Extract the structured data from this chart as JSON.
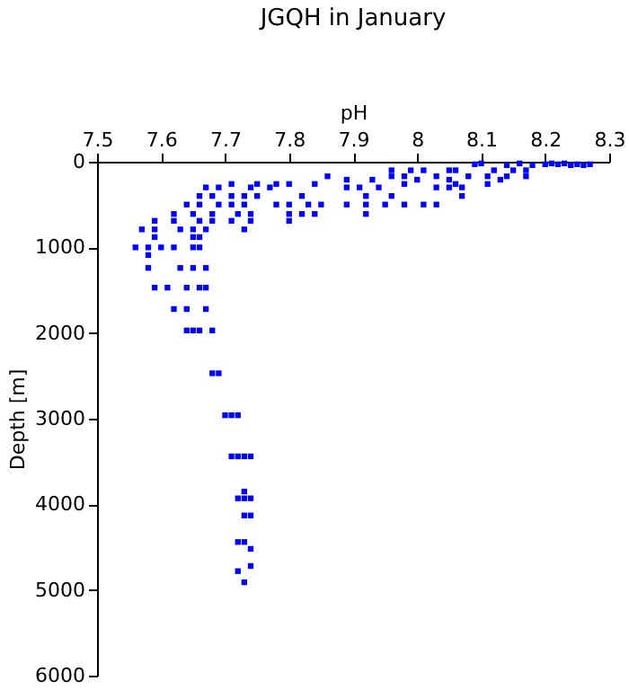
{
  "chart_data": {
    "type": "scatter",
    "title": "JGQH in January",
    "xlabel": "pH",
    "ylabel": "Depth [m]",
    "xlim": [
      7.5,
      8.3
    ],
    "xticks": [
      7.5,
      7.6,
      7.7,
      7.8,
      7.9,
      8,
      8.1,
      8.2,
      8.3
    ],
    "ylim": [
      6000,
      0
    ],
    "yticks": [
      0,
      1000,
      2000,
      3000,
      4000,
      5000,
      6000
    ],
    "marker": "square",
    "grid": false,
    "series": [
      {
        "color": "#0000ff",
        "x": [
          8.09,
          8.1,
          8.14,
          8.16,
          8.18,
          8.2,
          8.21,
          8.22,
          8.23,
          8.24,
          8.25,
          8.26,
          8.27,
          7.96,
          7.99,
          8.01,
          8.05,
          8.06,
          8.12,
          8.15,
          8.17,
          7.86,
          7.96,
          7.98,
          8.03,
          8.08,
          8.11,
          8.14,
          8.17,
          7.89,
          7.93,
          8.0,
          8.05,
          8.13,
          7.71,
          7.75,
          7.78,
          7.8,
          7.84,
          7.98,
          8.06,
          8.11,
          7.67,
          7.69,
          7.74,
          7.77,
          7.89,
          7.91,
          7.94,
          8.03,
          8.05,
          8.07,
          7.66,
          7.68,
          7.71,
          7.73,
          7.75,
          7.82,
          7.92,
          7.96,
          8.07,
          7.64,
          7.66,
          7.69,
          7.71,
          7.73,
          7.78,
          7.8,
          7.83,
          7.85,
          7.89,
          7.92,
          7.95,
          7.98,
          8.01,
          8.03,
          7.62,
          7.65,
          7.68,
          7.72,
          7.74,
          7.8,
          7.82,
          7.84,
          7.92,
          7.59,
          7.62,
          7.66,
          7.68,
          7.71,
          7.74,
          7.8,
          7.57,
          7.59,
          7.63,
          7.65,
          7.67,
          7.73,
          7.59,
          7.65,
          7.66,
          7.56,
          7.58,
          7.6,
          7.62,
          7.65,
          7.66,
          7.58,
          7.58,
          7.63,
          7.65,
          7.67,
          7.59,
          7.61,
          7.64,
          7.66,
          7.67,
          7.62,
          7.64,
          7.67,
          7.64,
          7.65,
          7.66,
          7.68,
          7.68,
          7.69,
          7.7,
          7.71,
          7.72,
          7.71,
          7.72,
          7.73,
          7.74,
          7.73,
          7.72,
          7.73,
          7.74,
          7.73,
          7.74,
          7.72,
          7.73,
          7.74,
          7.74,
          7.72,
          7.73
        ],
        "values": [
          30,
          20,
          40,
          20,
          40,
          30,
          20,
          30,
          20,
          40,
          30,
          40,
          30,
          100,
          100,
          100,
          100,
          100,
          100,
          100,
          100,
          170,
          170,
          170,
          170,
          170,
          170,
          170,
          170,
          210,
          210,
          210,
          210,
          210,
          260,
          260,
          260,
          260,
          260,
          260,
          260,
          260,
          300,
          300,
          300,
          300,
          300,
          300,
          300,
          300,
          300,
          300,
          400,
          400,
          400,
          400,
          400,
          400,
          400,
          400,
          400,
          500,
          500,
          500,
          500,
          500,
          500,
          500,
          500,
          500,
          500,
          500,
          500,
          500,
          500,
          500,
          610,
          610,
          610,
          610,
          610,
          610,
          610,
          610,
          610,
          690,
          690,
          690,
          690,
          690,
          690,
          690,
          790,
          790,
          790,
          790,
          790,
          790,
          880,
          880,
          880,
          1000,
          1000,
          1000,
          1000,
          1000,
          1000,
          1090,
          1240,
          1240,
          1240,
          1240,
          1470,
          1470,
          1470,
          1470,
          1470,
          1720,
          1720,
          1720,
          1970,
          1970,
          1970,
          1970,
          2470,
          2470,
          2960,
          2960,
          2960,
          3440,
          3440,
          3440,
          3440,
          3850,
          3930,
          3930,
          3930,
          4130,
          4130,
          4440,
          4440,
          4520,
          4720,
          4780,
          4910
        ]
      }
    ]
  }
}
